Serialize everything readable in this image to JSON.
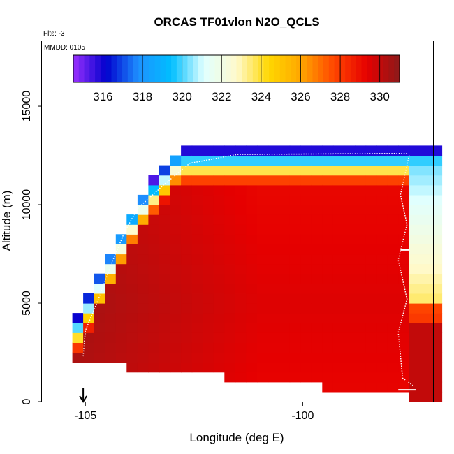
{
  "chart_data": {
    "type": "heatmap",
    "title": "ORCAS TF01vlon N2O_QCLS",
    "subtitle_flights": "Flts: -3",
    "annotation_mmdd": "MMDD: 0105",
    "xlabel": "Longitude (deg E)",
    "ylabel": "Altitude (m)",
    "xlim": [
      -106.0,
      -97.0
    ],
    "ylim": [
      0,
      18300
    ],
    "x_ticks": [
      {
        "value": -105,
        "label": "-105"
      },
      {
        "value": -100,
        "label": "-100"
      }
    ],
    "y_ticks": [
      {
        "value": 0,
        "label": "0"
      },
      {
        "value": 5000,
        "label": "5000"
      },
      {
        "value": 10000,
        "label": "10000"
      },
      {
        "value": 15000,
        "label": "15000"
      }
    ],
    "colorbar": {
      "range": [
        314.5,
        331.0
      ],
      "tick_values": [
        316,
        318,
        320,
        322,
        324,
        326,
        328,
        330
      ],
      "tick_labels": [
        "316",
        "318",
        "320",
        "322",
        "324",
        "326",
        "328",
        "330"
      ],
      "colors": [
        "#9b30ff",
        "#0000cd",
        "#1e90ff",
        "#00bfff",
        "#e0ffff",
        "#fffacd",
        "#ffd700",
        "#ffa500",
        "#ff4500",
        "#e60000",
        "#8b1a1a"
      ]
    },
    "data_x_range": [
      -105.3,
      -97.0
    ],
    "data_y_range": [
      300,
      12700
    ],
    "bin_width_deg": 0.25,
    "bin_height_m": 500,
    "field_description_values": {
      "lower_troposphere": 330.0,
      "mid_troposphere_west": 330.8,
      "upper_troposphere_mid": 329.0,
      "lower_stratosphere_top": 317.0
    },
    "arrow_marker_lon": -105.05,
    "arrow_marker_alt": 200
  }
}
